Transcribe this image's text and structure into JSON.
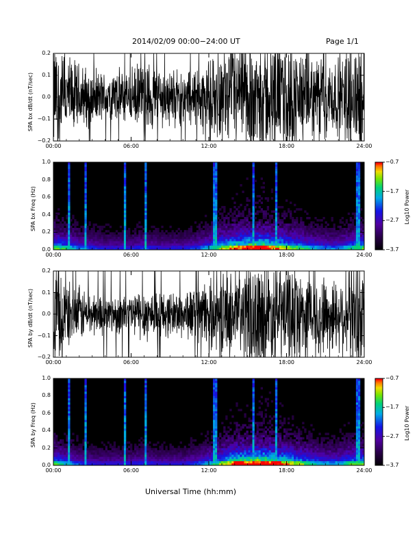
{
  "header": {
    "title": "2014/02/09  00:00−24:00 UT",
    "page": "Page 1/1"
  },
  "xlabel": "Universal Time (hh:mm)",
  "colors": {
    "trace": "#000000",
    "background": "#ffffff",
    "spectrogram_bg": "#000000"
  },
  "chart_data": [
    {
      "type": "line",
      "title": "",
      "ylabel": "SPA bx dB/dt (nT/sec)",
      "xlim": [
        0,
        24
      ],
      "ylim": [
        -0.2,
        0.2
      ],
      "x_ticks": [
        "00:00",
        "06:00",
        "12:00",
        "18:00",
        "24:00"
      ],
      "y_ticks": [
        "−0.2",
        "−0.1",
        "0.0",
        "0.1",
        "0.2"
      ],
      "series": [
        {
          "x": [
            0,
            1,
            2,
            3,
            4,
            5,
            6,
            7,
            8,
            9,
            10,
            11,
            12,
            13,
            14,
            15,
            16,
            17,
            18,
            19,
            20,
            21,
            22,
            23,
            24
          ],
          "amplitude": [
            0.2,
            0.15,
            0.12,
            0.1,
            0.09,
            0.1,
            0.1,
            0.13,
            0.12,
            0.1,
            0.1,
            0.11,
            0.13,
            0.15,
            0.2,
            0.2,
            0.2,
            0.2,
            0.2,
            0.17,
            0.15,
            0.16,
            0.13,
            0.2,
            0.2
          ]
        }
      ]
    },
    {
      "type": "heatmap",
      "title": "",
      "ylabel": "SPA bx Freq (Hz)",
      "xlim": [
        0,
        24
      ],
      "ylim": [
        0.0,
        1.0
      ],
      "x_ticks": [
        "00:00",
        "06:00",
        "12:00",
        "18:00",
        "24:00"
      ],
      "y_ticks": [
        "0.0",
        "0.2",
        "0.4",
        "0.6",
        "0.8",
        "1.0"
      ],
      "colorbar": {
        "label": "Log10 Power",
        "ticks": [
          "−0.7",
          "−1.7",
          "−2.7",
          "−3.7"
        ],
        "range": [
          -3.7,
          -0.7
        ]
      },
      "bright_times": [
        1.2,
        2.5,
        5.5,
        7.1,
        12.5,
        15.4,
        17.2,
        23.5
      ],
      "activity": [
        0.6,
        0.5,
        0.4,
        0.35,
        0.3,
        0.3,
        0.3,
        0.35,
        0.3,
        0.3,
        0.3,
        0.35,
        0.45,
        0.6,
        0.7,
        0.75,
        0.8,
        0.7,
        0.65,
        0.55,
        0.45,
        0.4,
        0.4,
        0.5,
        0.6
      ]
    },
    {
      "type": "line",
      "title": "",
      "ylabel": "SPA by dB/dt (nT/sec)",
      "xlim": [
        0,
        24
      ],
      "ylim": [
        -0.2,
        0.2
      ],
      "x_ticks": [
        "00:00",
        "06:00",
        "12:00",
        "18:00",
        "24:00"
      ],
      "y_ticks": [
        "−0.2",
        "−0.1",
        "0.0",
        "0.1",
        "0.2"
      ],
      "series": [
        {
          "x": [
            0,
            1,
            2,
            3,
            4,
            5,
            6,
            7,
            8,
            9,
            10,
            11,
            12,
            13,
            14,
            15,
            16,
            17,
            18,
            19,
            20,
            21,
            22,
            23,
            24
          ],
          "amplitude": [
            0.2,
            0.12,
            0.1,
            0.08,
            0.07,
            0.07,
            0.08,
            0.1,
            0.09,
            0.08,
            0.09,
            0.1,
            0.12,
            0.14,
            0.16,
            0.18,
            0.2,
            0.2,
            0.19,
            0.16,
            0.14,
            0.15,
            0.13,
            0.2,
            0.2
          ]
        }
      ]
    },
    {
      "type": "heatmap",
      "title": "",
      "ylabel": "SPA by Freq (Hz)",
      "xlim": [
        0,
        24
      ],
      "ylim": [
        0.0,
        1.0
      ],
      "x_ticks": [
        "00:00",
        "06:00",
        "12:00",
        "18:00",
        "24:00"
      ],
      "y_ticks": [
        "0.0",
        "0.2",
        "0.4",
        "0.6",
        "0.8",
        "1.0"
      ],
      "colorbar": {
        "label": "Log10 Power",
        "ticks": [
          "−0.7",
          "−1.7",
          "−2.7",
          "−3.7"
        ],
        "range": [
          -3.7,
          -0.7
        ]
      },
      "bright_times": [
        1.2,
        2.5,
        5.5,
        7.1,
        12.5,
        15.4,
        17.2,
        23.5
      ],
      "activity": [
        0.55,
        0.45,
        0.35,
        0.3,
        0.3,
        0.3,
        0.3,
        0.35,
        0.3,
        0.3,
        0.3,
        0.35,
        0.45,
        0.6,
        0.75,
        0.8,
        0.85,
        0.8,
        0.7,
        0.6,
        0.5,
        0.45,
        0.45,
        0.55,
        0.6
      ]
    }
  ]
}
